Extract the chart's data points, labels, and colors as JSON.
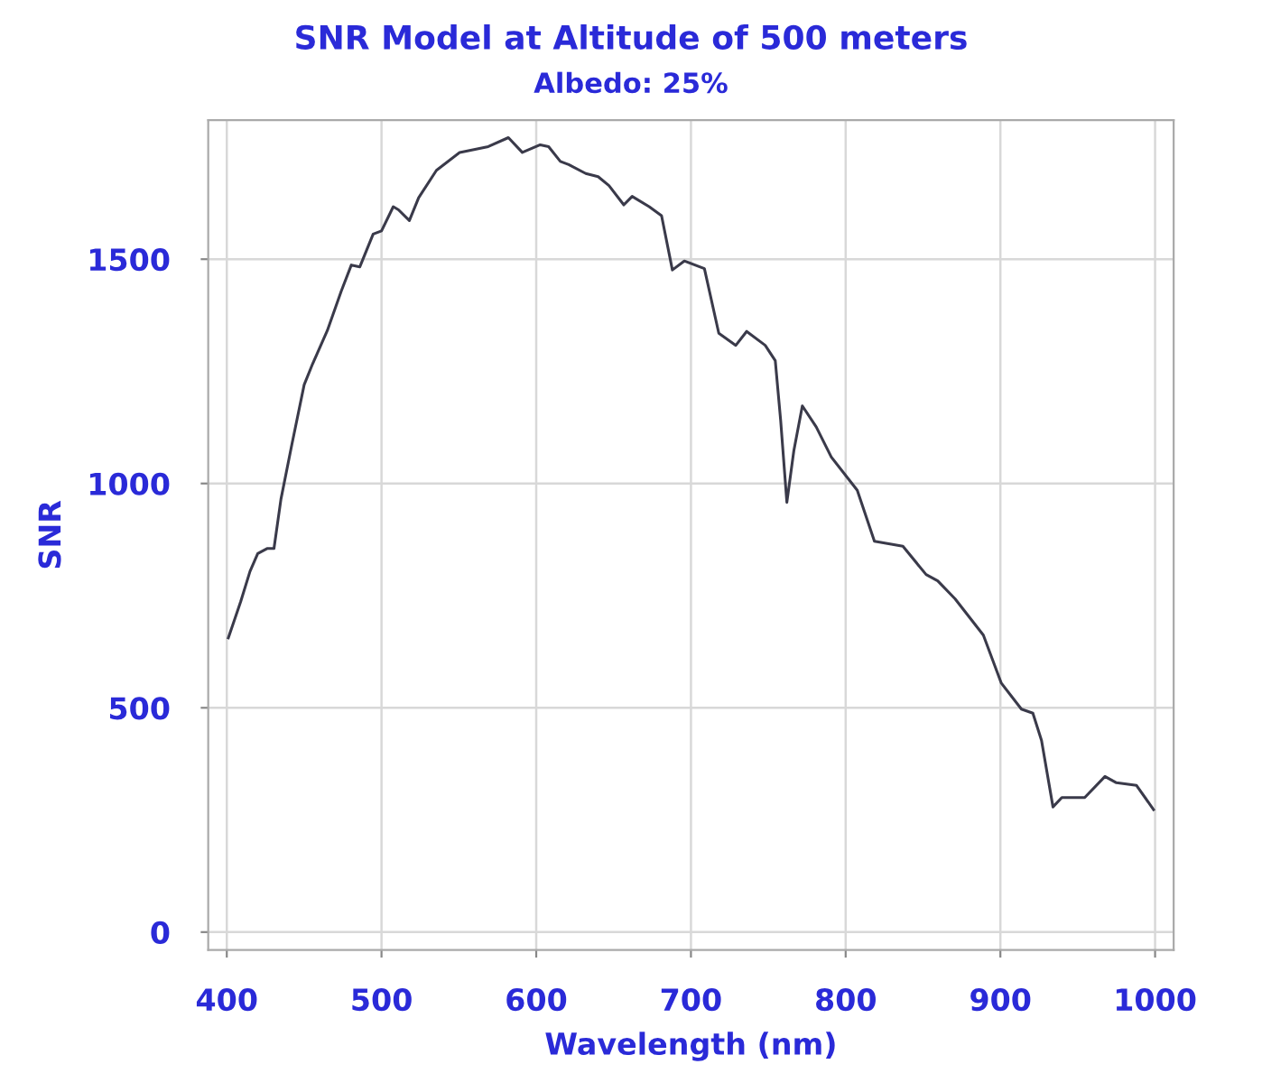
{
  "chart_data": {
    "type": "line",
    "title": "SNR Model at Altitude of 500 meters",
    "subtitle": "Albedo: 25%",
    "xlabel": "Wavelength (nm)",
    "ylabel": "SNR",
    "xlim": [
      388,
      1012
    ],
    "ylim": [
      -40,
      1810
    ],
    "xticks": [
      400,
      500,
      600,
      700,
      800,
      900,
      1000
    ],
    "yticks": [
      0,
      500,
      1000,
      1500
    ],
    "grid": true,
    "marker": "none",
    "line_style": "solid",
    "series": [
      {
        "color": "#3a3a4a",
        "x": [
          401,
          409,
          415,
          420,
          426,
          430.5,
          435,
          442,
          450,
          455.5,
          465,
          474,
          480.5,
          486,
          494.6,
          500,
          507.6,
          511,
          518,
          524,
          535.5,
          550.5,
          569,
          582,
          591,
          602.6,
          608,
          615.6,
          621,
          632,
          640,
          647,
          656.6,
          662,
          673,
          681,
          688,
          695.7,
          708.7,
          718,
          729,
          736,
          748,
          754.5,
          758,
          762,
          766.5,
          772,
          781,
          790.7,
          807.5,
          818.6,
          837,
          852,
          859.5,
          870.7,
          889,
          900.6,
          913.6,
          921,
          926.6,
          934,
          939.7,
          954.5,
          967.6,
          975,
          988,
          999
        ],
        "values": [
          656,
          737,
          804,
          844,
          855,
          855,
          965,
          1086,
          1220,
          1267,
          1341,
          1429,
          1487,
          1483,
          1556,
          1563,
          1617,
          1610,
          1586,
          1637,
          1698,
          1738,
          1751,
          1771,
          1738,
          1755,
          1751,
          1718,
          1711,
          1691,
          1684,
          1664,
          1621,
          1640,
          1617,
          1597,
          1476,
          1496,
          1479,
          1335,
          1308,
          1339,
          1308,
          1274,
          1140,
          958,
          1073,
          1173,
          1126,
          1059,
          985,
          871,
          860,
          797,
          783,
          743,
          662,
          555,
          497,
          488,
          427,
          279,
          300,
          300,
          347,
          333,
          327,
          273
        ]
      }
    ]
  }
}
